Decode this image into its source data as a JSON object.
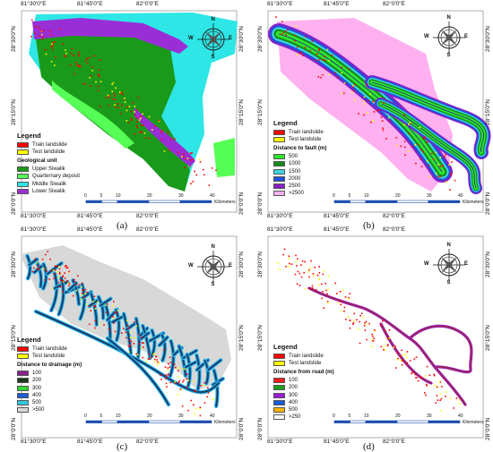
{
  "coords": {
    "top": [
      "81°30'0\"E",
      "81°45'0\"E",
      "82°0'0\"E"
    ],
    "bottom": [
      "81°30'0\"E",
      "81°45'0\"E",
      "82°0'0\"E"
    ],
    "left": [
      "28°30'0\"N",
      "28°15'0\"N",
      "28°0'0\"N"
    ],
    "right": [
      "28°30'0\"N",
      "28°15'0\"N",
      "28°0'0\"N"
    ]
  },
  "compass": {
    "n": "N",
    "s": "S",
    "e": "E",
    "w": "W"
  },
  "scale": {
    "ticks": [
      "0",
      "5",
      "10",
      "20",
      "30",
      "40"
    ],
    "unit": "Kilometers"
  },
  "landslides": {
    "train": "Train landslide",
    "test": "Test landslide",
    "train_color": "#ff0000",
    "test_color": "#ffff00"
  },
  "panels": [
    {
      "caption": "(a)",
      "legend_title": "Legend",
      "subtitle": "Geological unit",
      "classes": [
        {
          "label": "Upper Siwalik",
          "color": "#1a9a1a"
        },
        {
          "label": "Quarternary deposit",
          "color": "#55ff55"
        },
        {
          "label": "Middle Siwalik",
          "color": "#2ee6e6"
        },
        {
          "label": "Lower Siwalik",
          "color": "#9a2ed6"
        }
      ]
    },
    {
      "caption": "(b)",
      "legend_title": "Legend",
      "subtitle": "Distance to fault (m)",
      "classes": [
        {
          "label": "500",
          "color": "#2ee62e"
        },
        {
          "label": "1000",
          "color": "#178a17"
        },
        {
          "label": "1500",
          "color": "#3ad6e0"
        },
        {
          "label": "2000",
          "color": "#1f50d8"
        },
        {
          "label": "2500",
          "color": "#8a1fc8"
        },
        {
          "label": ">2500",
          "color": "#ffb0f0"
        }
      ]
    },
    {
      "caption": "(c)",
      "legend_title": "Legend",
      "subtitle": "Distance to drainage (m)",
      "classes": [
        {
          "label": "100",
          "color": "#8a2090"
        },
        {
          "label": "200",
          "color": "#1a3a1a"
        },
        {
          "label": "300",
          "color": "#2ed62e"
        },
        {
          "label": "400",
          "color": "#1f5ad8"
        },
        {
          "label": "500",
          "color": "#2ec8e0"
        },
        {
          "label": ">500",
          "color": "#d8d8d8"
        }
      ]
    },
    {
      "caption": "(d)",
      "legend_title": "Legend",
      "subtitle": "Distance from road (m)",
      "classes": [
        {
          "label": "100",
          "color": "#ff1a1a"
        },
        {
          "label": "200",
          "color": "#1aa01a"
        },
        {
          "label": "300",
          "color": "#9a1ad6"
        },
        {
          "label": "400",
          "color": "#1a5ad8"
        },
        {
          "label": "500",
          "color": "#ffb000"
        },
        {
          "label": ">250",
          "color": "#ffffff"
        }
      ]
    }
  ]
}
